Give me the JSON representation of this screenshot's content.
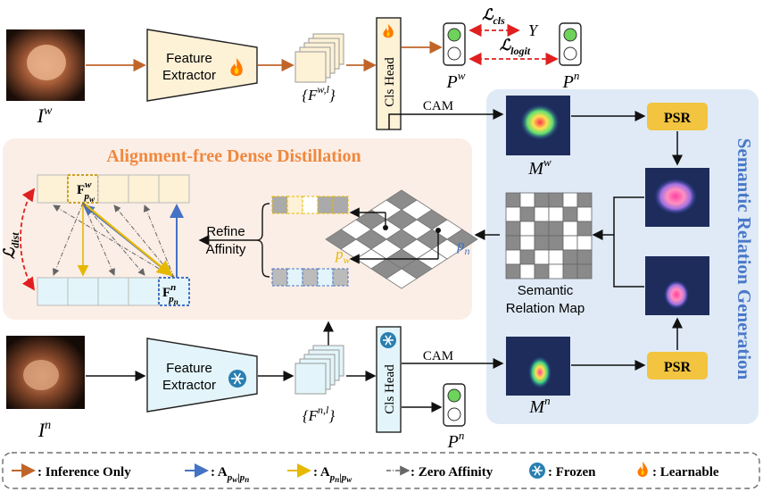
{
  "diagram": {
    "top": {
      "image_label": "I",
      "image_label_sup": "w",
      "extractor_lines": [
        "Feature",
        "Extractor"
      ],
      "features_label": "{F",
      "features_sup": "w,l",
      "features_close": "}",
      "cls_head": "Cls Head",
      "p_label": "P",
      "p_sup": "w",
      "pn_label": "P",
      "pn_sup": "n",
      "loss_cls_main": "ℒ",
      "loss_cls_sub": "cls",
      "y_label": "Y",
      "loss_logit_main": "ℒ",
      "loss_logit_sub": "logit",
      "cam_label": "CAM"
    },
    "bottom": {
      "image_label": "I",
      "image_label_sup": "n",
      "extractor_lines": [
        "Feature",
        "Extractor"
      ],
      "features_label": "{F",
      "features_sup": "n,l",
      "features_close": "}",
      "cls_head": "Cls Head",
      "p_label": "P",
      "p_sup": "n",
      "cam_label": "CAM"
    },
    "distill": {
      "title": "Alignment-free Dense Distillation",
      "fw_main": "F",
      "fw_sup": "w",
      "fw_sub": "p",
      "fw_subsub": "w",
      "fn_main": "F",
      "fn_sup": "n",
      "fn_sub": "p",
      "fn_subsub": "n",
      "loss_main": "ℒ",
      "loss_sub": "dist",
      "refine_lines": [
        "Refine",
        "Affinity"
      ],
      "pw_main": "p",
      "pw_sub": "w",
      "pn_main": "p",
      "pn_sub": "n"
    },
    "relation": {
      "title": "Semantic Relation Generation",
      "psr_top": "PSR",
      "psr_bottom": "PSR",
      "mw_main": "M",
      "mw_sup": "w",
      "mn_main": "M",
      "mn_sup": "n",
      "map_lines": [
        "Semantic",
        "Relation Map"
      ]
    },
    "legend": [
      {
        "icon": "orange-arrow",
        "label": ": Inference Only"
      },
      {
        "icon": "blue-arrow",
        "label_main": ": A",
        "label_sub": "p",
        "label_subsub1": "w",
        "label_bar": "|p",
        "label_subsub2": "n"
      },
      {
        "icon": "yellow-arrow",
        "label_main": ": A",
        "label_sub": "p",
        "label_subsub1": "n",
        "label_bar": "|p",
        "label_subsub2": "w"
      },
      {
        "icon": "dashdot-arrow",
        "label": ": Zero Affinity"
      },
      {
        "icon": "snowflake-icon",
        "label": ": Frozen"
      },
      {
        "icon": "flame-icon",
        "label": ": Learnable"
      }
    ],
    "colors": {
      "inference_arrow": "#c0652a",
      "blue_arrow": "#4472c4",
      "yellow_arrow": "#e6b800",
      "loss_red": "#e02020",
      "distill_bg": "#fbeee6",
      "distill_title": "#f0883e",
      "relation_bg": "#dfeaf6",
      "relation_title": "#4a78c8",
      "psr_fill": "#f2c440",
      "top_extractor_fill": "#fdf1d6",
      "bottom_extractor_fill": "#e3f5fa"
    }
  }
}
